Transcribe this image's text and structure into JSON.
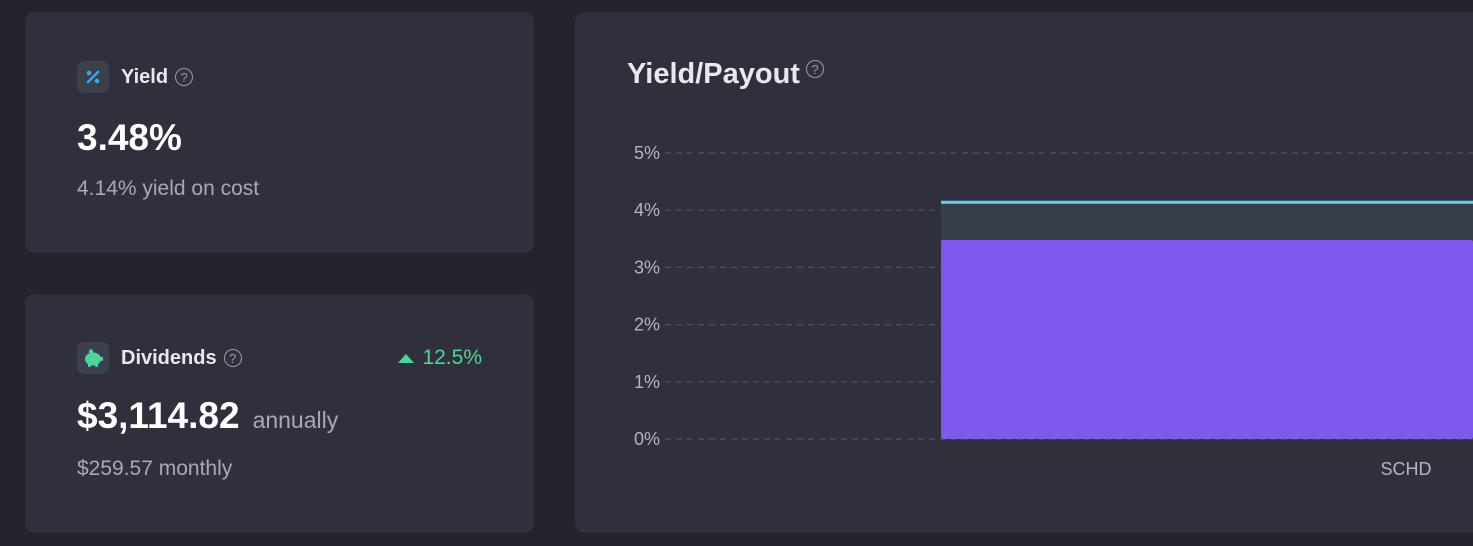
{
  "yield_card": {
    "label": "Yield",
    "help": "?",
    "value": "3.48%",
    "sub": "4.14% yield on cost",
    "icon": "percent-icon"
  },
  "dividends_card": {
    "label": "Dividends",
    "help": "?",
    "change": "12.5%",
    "annual_value": "$3,114.82",
    "annual_suffix": "annually",
    "monthly": "$259.57 monthly",
    "icon": "piggy-bank-icon"
  },
  "chart_card": {
    "title": "Yield/Payout",
    "help": "?"
  },
  "colors": {
    "bar": "#7f57ea",
    "payout_band": "#383d4a",
    "line": "#5fd3e6",
    "positive": "#4ed49a"
  },
  "chart_data": {
    "type": "bar",
    "title": "Yield/Payout",
    "categories": [
      "SCHD"
    ],
    "series": [
      {
        "values": [
          3.48
        ]
      },
      {
        "values": [
          4.14
        ]
      }
    ],
    "ylim": [
      0,
      5
    ],
    "yticks": [
      "0%",
      "1%",
      "2%",
      "3%",
      "4%",
      "5%"
    ],
    "grid": true
  }
}
